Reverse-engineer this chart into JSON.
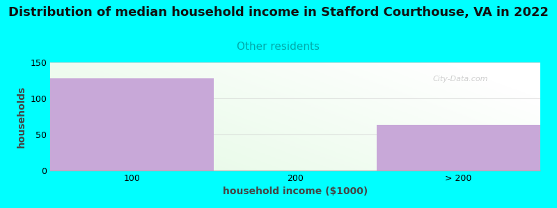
{
  "title": "Distribution of median household income in Stafford Courthouse, VA in 2022",
  "subtitle": "Other residents",
  "xlabel": "household income ($1000)",
  "ylabel": "households",
  "categories": [
    "100",
    "200",
    "> 200"
  ],
  "values": [
    128,
    0,
    63
  ],
  "bar_color": "#c8a8d8",
  "background_color": "#00ffff",
  "ylim": [
    0,
    150
  ],
  "yticks": [
    0,
    50,
    100,
    150
  ],
  "title_fontsize": 13,
  "subtitle_fontsize": 11,
  "subtitle_color": "#00aaaa",
  "axis_label_fontsize": 10,
  "tick_fontsize": 9,
  "watermark": "City-Data.com"
}
